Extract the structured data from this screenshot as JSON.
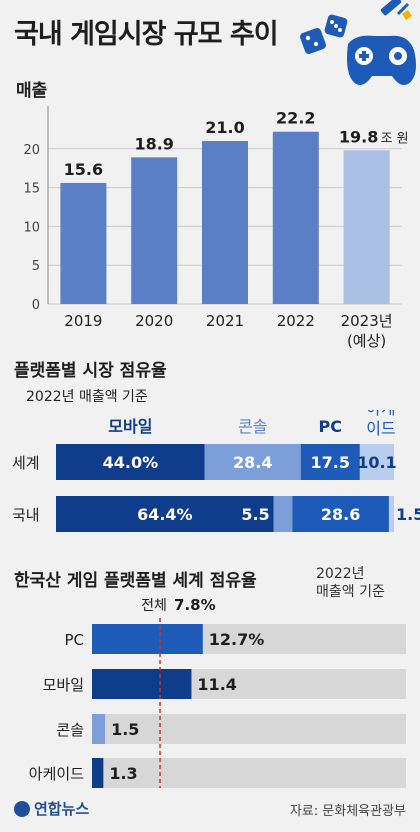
{
  "title": "국내 게임시장 규모 추이",
  "footer": {
    "logo": "연합뉴스",
    "source": "자료: 문화체육관광부"
  },
  "colors": {
    "primary": "#5a7fc7",
    "forecast": "#a9bfe3",
    "mobile": "#0f3d8c",
    "console": "#7d9fd9",
    "pc": "#1e5ab8",
    "arcade": "#b9cdee",
    "track": "#d7d7d7"
  },
  "chart_data": [
    {
      "type": "bar",
      "title": "매출",
      "categories": [
        "2019",
        "2020",
        "2021",
        "2022",
        "2023년\n(예상)"
      ],
      "values": [
        15.6,
        18.9,
        21.0,
        22.2,
        19.8
      ],
      "value_labels": [
        "15.6",
        "18.9",
        "21.0",
        "22.2",
        "19.8"
      ],
      "unit": "조 원",
      "ylim": [
        0,
        25
      ],
      "yticks": [
        "0",
        "5",
        "10",
        "15",
        "20"
      ],
      "forecast_index": 4
    },
    {
      "type": "bar",
      "stacked": true,
      "orientation": "horizontal",
      "title": "플랫폼별 시장 점유율",
      "note": "2022년 매출액 기준",
      "categories": [
        "세계",
        "국내"
      ],
      "series": [
        {
          "name": "모바일",
          "values": [
            44.0,
            64.4
          ],
          "labels": [
            "44.0%",
            "64.4%"
          ]
        },
        {
          "name": "콘솔",
          "values": [
            28.4,
            5.5
          ],
          "labels": [
            "28.4",
            "5.5"
          ]
        },
        {
          "name": "PC",
          "values": [
            17.5,
            28.6
          ],
          "labels": [
            "17.5",
            "28.6"
          ]
        },
        {
          "name": "아케\n이드",
          "values": [
            10.1,
            1.5
          ],
          "labels": [
            "10.1",
            "1.5"
          ]
        }
      ]
    },
    {
      "type": "bar",
      "orientation": "horizontal",
      "title": "한국산 게임 플랫폼별 세계 점유율",
      "note": "2022년\n매출액 기준",
      "categories": [
        "PC",
        "모바일",
        "콘솔",
        "아케이드"
      ],
      "values": [
        12.7,
        11.4,
        1.5,
        1.3
      ],
      "value_labels": [
        "12.7%",
        "11.4",
        "1.5",
        "1.3"
      ],
      "reference": {
        "label": "전체",
        "value_label": "7.8%",
        "value": 7.8
      }
    }
  ]
}
